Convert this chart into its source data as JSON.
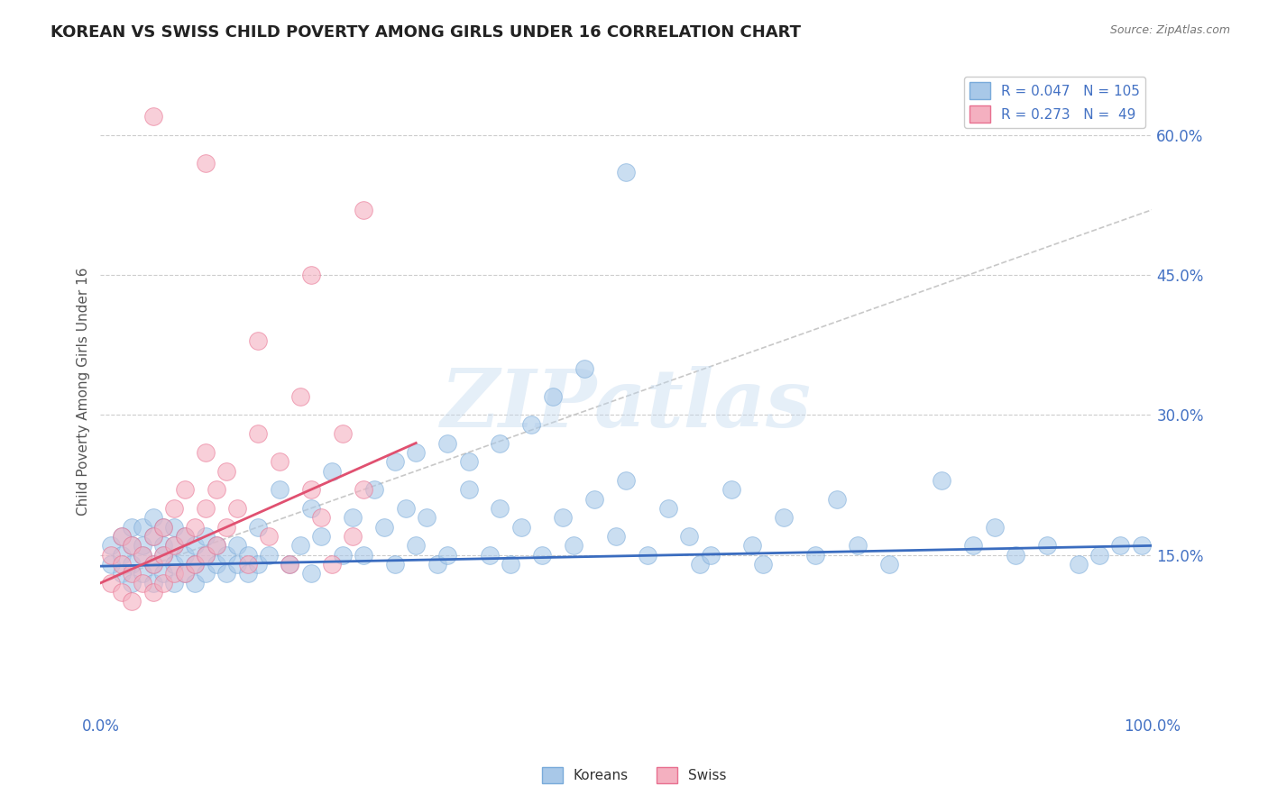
{
  "title": "KOREAN VS SWISS CHILD POVERTY AMONG GIRLS UNDER 16 CORRELATION CHART",
  "source": "Source: ZipAtlas.com",
  "ylabel": "Child Poverty Among Girls Under 16",
  "watermark": "ZIPatlas",
  "xlim": [
    0.0,
    1.0
  ],
  "ylim": [
    -0.02,
    0.67
  ],
  "xticks": [
    0.0,
    1.0
  ],
  "xtick_labels": [
    "0.0%",
    "100.0%"
  ],
  "ytick_positions": [
    0.15,
    0.3,
    0.45,
    0.6
  ],
  "ytick_labels": [
    "15.0%",
    "30.0%",
    "45.0%",
    "60.0%"
  ],
  "korean_R": 0.047,
  "korean_N": 105,
  "swiss_R": 0.273,
  "swiss_N": 49,
  "korean_color": "#a8c8e8",
  "swiss_color": "#f4b0c0",
  "korean_edge_color": "#7aabda",
  "swiss_edge_color": "#e87090",
  "korean_line_color": "#3a6cbf",
  "swiss_line_color": "#e05070",
  "ref_line_color": "#c8c8c8",
  "grid_color": "#cccccc",
  "axis_label_color": "#4472c4",
  "title_color": "#222222",
  "background_color": "#ffffff",
  "korean_x": [
    0.01,
    0.01,
    0.02,
    0.02,
    0.02,
    0.03,
    0.03,
    0.03,
    0.03,
    0.04,
    0.04,
    0.04,
    0.04,
    0.05,
    0.05,
    0.05,
    0.05,
    0.06,
    0.06,
    0.06,
    0.06,
    0.07,
    0.07,
    0.07,
    0.07,
    0.08,
    0.08,
    0.08,
    0.09,
    0.09,
    0.09,
    0.1,
    0.1,
    0.1,
    0.11,
    0.11,
    0.12,
    0.12,
    0.13,
    0.13,
    0.14,
    0.14,
    0.15,
    0.15,
    0.16,
    0.17,
    0.18,
    0.19,
    0.2,
    0.2,
    0.21,
    0.22,
    0.23,
    0.24,
    0.25,
    0.26,
    0.27,
    0.28,
    0.29,
    0.3,
    0.31,
    0.32,
    0.33,
    0.35,
    0.37,
    0.38,
    0.39,
    0.4,
    0.42,
    0.44,
    0.45,
    0.47,
    0.49,
    0.5,
    0.52,
    0.54,
    0.56,
    0.57,
    0.58,
    0.6,
    0.62,
    0.63,
    0.65,
    0.68,
    0.7,
    0.72,
    0.75,
    0.8,
    0.83,
    0.85,
    0.87,
    0.9,
    0.93,
    0.95,
    0.97,
    0.99,
    0.5,
    0.46,
    0.43,
    0.41,
    0.38,
    0.35,
    0.33,
    0.3,
    0.28
  ],
  "korean_y": [
    0.14,
    0.16,
    0.13,
    0.15,
    0.17,
    0.12,
    0.14,
    0.16,
    0.18,
    0.13,
    0.15,
    0.16,
    0.18,
    0.12,
    0.14,
    0.17,
    0.19,
    0.13,
    0.15,
    0.16,
    0.18,
    0.12,
    0.14,
    0.16,
    0.18,
    0.13,
    0.15,
    0.17,
    0.12,
    0.14,
    0.16,
    0.13,
    0.15,
    0.17,
    0.14,
    0.16,
    0.13,
    0.15,
    0.14,
    0.16,
    0.13,
    0.15,
    0.18,
    0.14,
    0.15,
    0.22,
    0.14,
    0.16,
    0.13,
    0.2,
    0.17,
    0.24,
    0.15,
    0.19,
    0.15,
    0.22,
    0.18,
    0.14,
    0.2,
    0.16,
    0.19,
    0.14,
    0.15,
    0.22,
    0.15,
    0.2,
    0.14,
    0.18,
    0.15,
    0.19,
    0.16,
    0.21,
    0.17,
    0.23,
    0.15,
    0.2,
    0.17,
    0.14,
    0.15,
    0.22,
    0.16,
    0.14,
    0.19,
    0.15,
    0.21,
    0.16,
    0.14,
    0.23,
    0.16,
    0.18,
    0.15,
    0.16,
    0.14,
    0.15,
    0.16,
    0.16,
    0.56,
    0.35,
    0.32,
    0.29,
    0.27,
    0.25,
    0.27,
    0.26,
    0.25
  ],
  "swiss_x": [
    0.01,
    0.01,
    0.02,
    0.02,
    0.02,
    0.03,
    0.03,
    0.03,
    0.04,
    0.04,
    0.05,
    0.05,
    0.05,
    0.06,
    0.06,
    0.06,
    0.07,
    0.07,
    0.07,
    0.08,
    0.08,
    0.08,
    0.09,
    0.09,
    0.1,
    0.1,
    0.1,
    0.11,
    0.11,
    0.12,
    0.12,
    0.13,
    0.14,
    0.15,
    0.16,
    0.17,
    0.18,
    0.19,
    0.2,
    0.21,
    0.22,
    0.23,
    0.24,
    0.25,
    0.15,
    0.2,
    0.25,
    0.1,
    0.05
  ],
  "swiss_y": [
    0.12,
    0.15,
    0.11,
    0.14,
    0.17,
    0.1,
    0.13,
    0.16,
    0.12,
    0.15,
    0.11,
    0.14,
    0.17,
    0.12,
    0.15,
    0.18,
    0.13,
    0.16,
    0.2,
    0.13,
    0.17,
    0.22,
    0.14,
    0.18,
    0.15,
    0.2,
    0.26,
    0.16,
    0.22,
    0.18,
    0.24,
    0.2,
    0.14,
    0.28,
    0.17,
    0.25,
    0.14,
    0.32,
    0.22,
    0.19,
    0.14,
    0.28,
    0.17,
    0.22,
    0.38,
    0.45,
    0.52,
    0.57,
    0.62
  ],
  "korean_trend_x": [
    0.0,
    1.0
  ],
  "korean_trend_y": [
    0.138,
    0.16
  ],
  "swiss_trend_x": [
    0.0,
    0.3
  ],
  "swiss_trend_y": [
    0.12,
    0.27
  ],
  "ref_line_x": [
    0.0,
    1.0
  ],
  "ref_line_y": [
    0.12,
    0.52
  ]
}
